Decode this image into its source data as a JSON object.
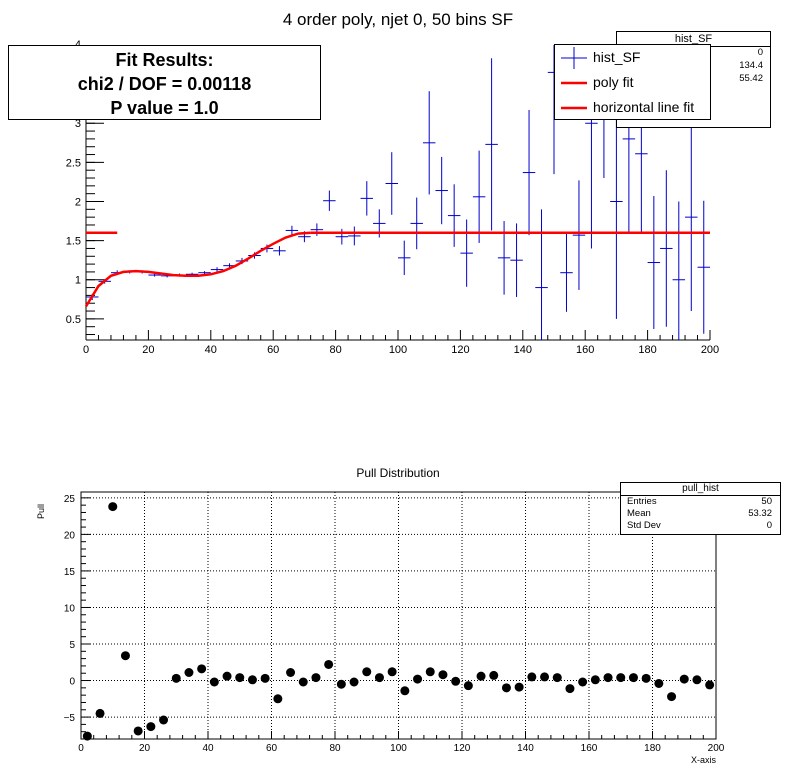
{
  "colors": {
    "hist": "#0000cc",
    "fit": "#ff0000",
    "marker": "#000000",
    "grid": "#000000"
  },
  "chart_data": [
    {
      "name": "top",
      "type": "line",
      "title": "4 order poly, njet 0, 50 bins SF",
      "xlim": [
        0,
        200
      ],
      "ylim": [
        0.23,
        4.0
      ],
      "xticks": [
        0,
        20,
        40,
        60,
        80,
        100,
        120,
        140,
        160,
        180,
        200
      ],
      "xtick_labels": [
        "0",
        "20",
        "40",
        "60",
        "80",
        "100",
        "120",
        "140",
        "160",
        "180",
        "200"
      ],
      "yticks": [
        0.5,
        1,
        1.5,
        2,
        2.5,
        3,
        3.5
      ],
      "ytick_labels": [
        "0.5",
        "1",
        "1.5",
        "2",
        "2.5",
        "3",
        "3.5"
      ],
      "hist_SF": {
        "bin_width": 4,
        "values": [
          0.78,
          0.98,
          1.09,
          1.1,
          1.1,
          1.06,
          1.05,
          1.06,
          1.07,
          1.09,
          1.13,
          1.18,
          1.24,
          1.31,
          1.4,
          1.37,
          1.63,
          1.55,
          1.64,
          2.01,
          1.55,
          1.56,
          2.04,
          1.72,
          2.23,
          1.28,
          1.72,
          2.75,
          2.14,
          1.82,
          1.34,
          2.06,
          2.73,
          1.28,
          1.25,
          2.37,
          0.9,
          3.65,
          1.09,
          1.57,
          3.0,
          3.8,
          2.0,
          2.8,
          2.61,
          1.22,
          1.4,
          1.0,
          1.8,
          1.16
        ],
        "errors": [
          0.04,
          0.03,
          0.03,
          0.02,
          0.02,
          0.02,
          0.02,
          0.02,
          0.02,
          0.02,
          0.03,
          0.03,
          0.04,
          0.04,
          0.05,
          0.06,
          0.06,
          0.07,
          0.08,
          0.13,
          0.1,
          0.12,
          0.22,
          0.18,
          0.4,
          0.22,
          0.33,
          0.66,
          0.43,
          0.4,
          0.43,
          0.59,
          1.1,
          0.47,
          0.47,
          0.8,
          1.0,
          1.3,
          0.5,
          0.7,
          1.6,
          1.5,
          1.5,
          1.2,
          1.0,
          0.85,
          1.0,
          1.0,
          1.2,
          0.85
        ]
      },
      "poly_fit": {
        "x": [
          0,
          4,
          8,
          12,
          16,
          20,
          24,
          28,
          32,
          36,
          40,
          44,
          48,
          52,
          56,
          60,
          64,
          68,
          72
        ],
        "y": [
          0.66,
          0.92,
          1.05,
          1.1,
          1.11,
          1.1,
          1.08,
          1.06,
          1.05,
          1.05,
          1.07,
          1.11,
          1.18,
          1.27,
          1.37,
          1.46,
          1.54,
          1.59,
          1.6
        ]
      },
      "horizontal_line_fit": {
        "y": 1.6,
        "segments": [
          [
            0,
            10
          ],
          [
            72,
            200
          ]
        ]
      }
    },
    {
      "name": "bottom",
      "type": "scatter",
      "title": "Pull Distribution",
      "xlabel": "X-axis",
      "ylabel": "Pull",
      "xlim": [
        0,
        200
      ],
      "ylim": [
        -8,
        25.8
      ],
      "xticks": [
        0,
        20,
        40,
        60,
        80,
        100,
        120,
        140,
        160,
        180,
        200
      ],
      "xtick_labels": [
        "0",
        "20",
        "40",
        "60",
        "80",
        "100",
        "120",
        "140",
        "160",
        "180",
        "200"
      ],
      "yticks": [
        -5,
        0,
        5,
        10,
        15,
        20,
        25
      ],
      "ytick_labels": [
        "−5",
        "0",
        "5",
        "10",
        "15",
        "20",
        "25"
      ],
      "x": [
        2,
        6,
        10,
        14,
        18,
        22,
        26,
        30,
        34,
        38,
        42,
        46,
        50,
        54,
        58,
        62,
        66,
        70,
        74,
        78,
        82,
        86,
        90,
        94,
        98,
        102,
        106,
        110,
        114,
        118,
        122,
        126,
        130,
        134,
        138,
        142,
        146,
        150,
        154,
        158,
        162,
        166,
        170,
        174,
        178,
        182,
        186,
        190,
        194,
        198
      ],
      "y": [
        -7.6,
        -4.5,
        23.8,
        3.4,
        -6.9,
        -6.3,
        -5.4,
        0.3,
        1.1,
        1.6,
        -0.2,
        0.6,
        0.4,
        0.1,
        0.3,
        -2.5,
        1.1,
        -0.2,
        0.4,
        2.2,
        -0.5,
        -0.2,
        1.2,
        0.4,
        1.2,
        -1.4,
        0.2,
        1.2,
        0.8,
        -0.1,
        -0.7,
        0.6,
        0.7,
        -1.0,
        -0.9,
        0.5,
        0.5,
        0.4,
        -1.1,
        -0.2,
        0.1,
        0.4,
        0.4,
        0.4,
        0.3,
        -0.4,
        -2.2,
        0.2,
        0.1,
        -0.6
      ]
    }
  ],
  "stats_top": {
    "title": "hist_SF",
    "rows": [
      {
        "label": "",
        "value": "0"
      },
      {
        "label": "",
        "value": "134.4"
      },
      {
        "label": "",
        "value": "55.42"
      }
    ]
  },
  "stats_bottom": {
    "title": "pull_hist",
    "rows": [
      {
        "label": "Entries",
        "value": "50"
      },
      {
        "label": "Mean",
        "value": "53.32"
      },
      {
        "label": "Std Dev",
        "value": "0"
      }
    ]
  },
  "fit_results": {
    "line1": "Fit Results:",
    "line2": "chi2 / DOF = 0.00118",
    "line3": "P value = 1.0"
  },
  "legend": {
    "hist": "hist_SF",
    "poly": "poly fit",
    "hline": "horizontal line fit"
  }
}
